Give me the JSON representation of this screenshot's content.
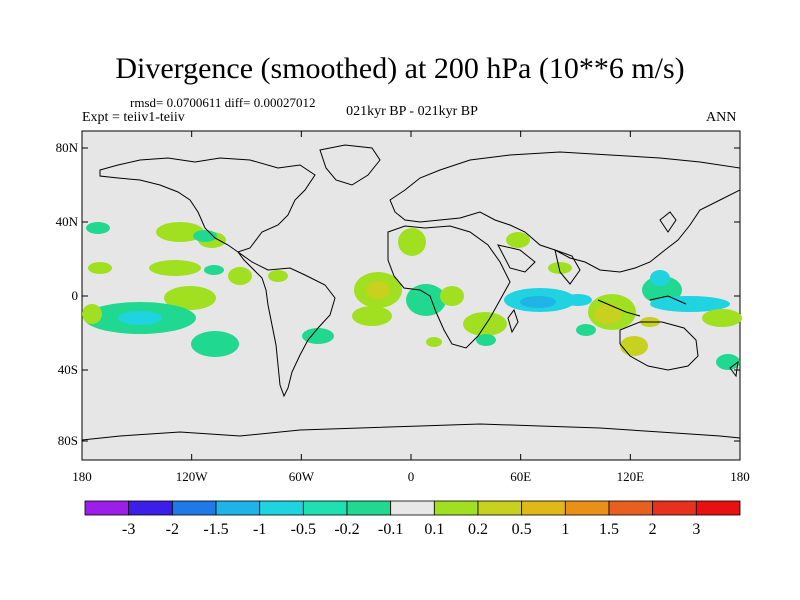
{
  "title": "Divergence (smoothed) at 200 hPa (10**6 m/s)",
  "stats_text": "rmsd= 0.0700611 diff= 0.00027012",
  "experiment_text": "Expt = teiiv1-teiiv",
  "period_text": "021kyr BP - 021kyr BP",
  "season_text": "ANN",
  "map": {
    "ocean_color": "#e6e6e6",
    "coast_color": "#000000",
    "lat_labels": [
      "80N",
      "40N",
      "0",
      "40S",
      "80S"
    ],
    "lon_labels": [
      "180",
      "120W",
      "60W",
      "0",
      "60E",
      "120E",
      "180"
    ]
  },
  "colorbar": {
    "labels": [
      "-3",
      "-2",
      "-1.5",
      "-1",
      "-0.5",
      "-0.2",
      "-0.1",
      "0.1",
      "0.2",
      "0.5",
      "1",
      "1.5",
      "2",
      "3"
    ],
    "colors": [
      "#9b1fe8",
      "#3b1fe8",
      "#1f7ae8",
      "#1fb3e8",
      "#1fd3e0",
      "#1fe0b0",
      "#20d890",
      "#e8e8e8",
      "#a0e020",
      "#c8d020",
      "#e0b818",
      "#e89018",
      "#e86020",
      "#e83020",
      "#e81010"
    ]
  }
}
